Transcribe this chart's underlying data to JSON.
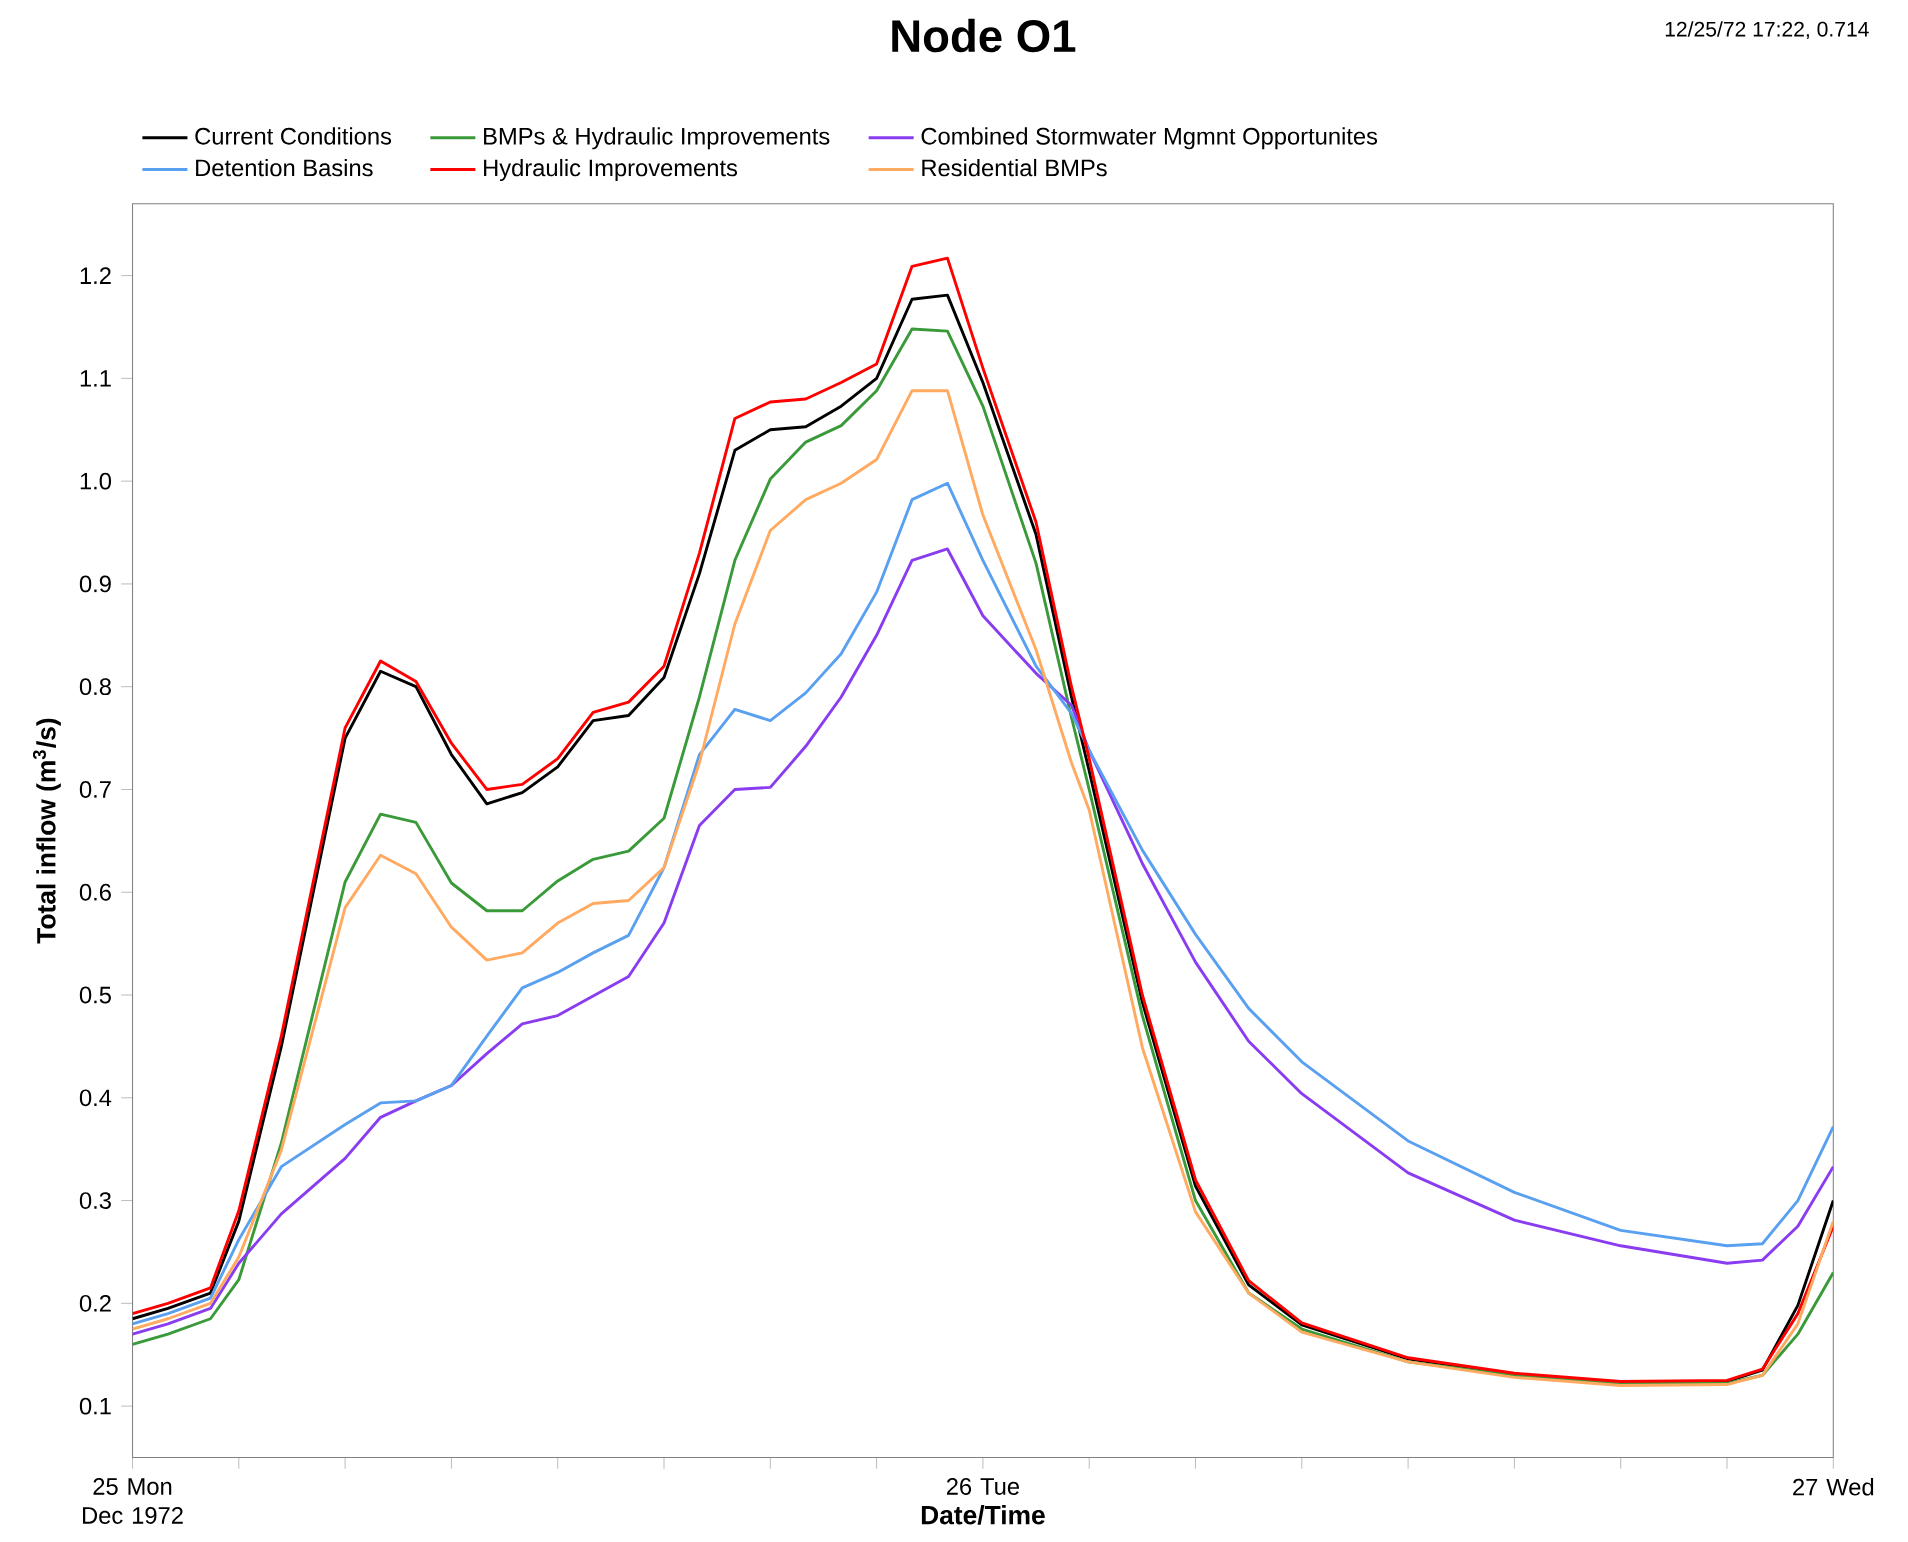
{
  "chart_data": {
    "type": "line",
    "title": "Node O1",
    "xlabel": "Date/Time",
    "ylabel": "Total inflow (m$^{3}$/s)",
    "annotations": [
      "12/25/72 17:22, 0.714"
    ],
    "x": [
      "1972-12-25T00:00",
      "1972-12-25T01:00",
      "1972-12-25T02:12",
      "1972-12-25T03:00",
      "1972-12-25T04:12",
      "1972-12-25T06:00",
      "1972-12-25T07:00",
      "1972-12-25T08:00",
      "1972-12-25T09:00",
      "1972-12-25T10:00",
      "1972-12-25T11:00",
      "1972-12-25T12:00",
      "1972-12-25T13:00",
      "1972-12-25T14:00",
      "1972-12-25T15:00",
      "1972-12-25T16:00",
      "1972-12-25T17:00",
      "1972-12-25T18:00",
      "1972-12-25T19:00",
      "1972-12-25T20:00",
      "1972-12-25T21:00",
      "1972-12-25T22:00",
      "1972-12-25T23:00",
      "1972-12-26T00:00",
      "1972-12-26T01:30",
      "1972-12-26T02:30",
      "1972-12-26T03:00",
      "1972-12-26T04:30",
      "1972-12-26T06:00",
      "1972-12-26T07:30",
      "1972-12-26T09:00",
      "1972-12-26T12:00",
      "1972-12-26T15:00",
      "1972-12-26T18:00",
      "1972-12-26T21:00",
      "1972-12-26T22:00",
      "1972-12-26T23:00",
      "1972-12-27T00:00"
    ],
    "series": [
      {
        "name": "Current Conditions",
        "color": "#000000",
        "values": [
          0.185,
          0.195,
          0.21,
          0.28,
          0.45,
          0.75,
          0.815,
          0.8,
          0.734,
          0.686,
          0.697,
          0.722,
          0.767,
          0.772,
          0.809,
          0.91,
          1.03,
          1.05,
          1.053,
          1.073,
          1.1,
          1.177,
          1.181,
          1.096,
          0.948,
          0.79,
          0.718,
          0.493,
          0.314,
          0.218,
          0.179,
          0.146,
          0.131,
          0.123,
          0.124,
          0.135,
          0.198,
          0.3
        ]
      },
      {
        "name": "BMPs & Hydraulic Improvements",
        "color": "#3a9a3a",
        "values": [
          0.16,
          0.17,
          0.185,
          0.223,
          0.356,
          0.61,
          0.676,
          0.668,
          0.609,
          0.582,
          0.582,
          0.611,
          0.632,
          0.64,
          0.672,
          0.79,
          0.923,
          1.002,
          1.038,
          1.054,
          1.088,
          1.148,
          1.146,
          1.073,
          0.92,
          0.77,
          0.7,
          0.48,
          0.3,
          0.21,
          0.175,
          0.143,
          0.13,
          0.122,
          0.122,
          0.13,
          0.17,
          0.23
        ]
      },
      {
        "name": "Combined Stormwater Mgmnt Opportunites",
        "color": "#8a3cf0",
        "values": [
          0.17,
          0.18,
          0.195,
          0.239,
          0.287,
          0.341,
          0.381,
          0.397,
          0.412,
          0.443,
          0.472,
          0.48,
          0.499,
          0.518,
          0.57,
          0.665,
          0.7,
          0.702,
          0.742,
          0.79,
          0.85,
          0.923,
          0.934,
          0.869,
          0.813,
          0.782,
          0.738,
          0.628,
          0.532,
          0.455,
          0.404,
          0.327,
          0.281,
          0.256,
          0.239,
          0.242,
          0.275,
          0.333
        ]
      },
      {
        "name": "Detention Basins",
        "color": "#5aa0f0",
        "values": [
          0.18,
          0.19,
          0.205,
          0.262,
          0.333,
          0.374,
          0.395,
          0.397,
          0.412,
          0.46,
          0.507,
          0.522,
          0.541,
          0.558,
          0.624,
          0.734,
          0.778,
          0.767,
          0.794,
          0.832,
          0.892,
          0.982,
          0.998,
          0.923,
          0.82,
          0.774,
          0.738,
          0.641,
          0.559,
          0.487,
          0.435,
          0.358,
          0.308,
          0.271,
          0.256,
          0.258,
          0.3,
          0.372
        ]
      },
      {
        "name": "Hydraulic Improvements",
        "color": "#ff0000",
        "values": [
          0.19,
          0.2,
          0.215,
          0.29,
          0.46,
          0.76,
          0.825,
          0.805,
          0.745,
          0.7,
          0.705,
          0.73,
          0.775,
          0.785,
          0.82,
          0.93,
          1.061,
          1.077,
          1.08,
          1.096,
          1.114,
          1.209,
          1.217,
          1.11,
          0.96,
          0.8,
          0.73,
          0.5,
          0.32,
          0.222,
          0.181,
          0.147,
          0.132,
          0.124,
          0.125,
          0.136,
          0.19,
          0.275
        ]
      },
      {
        "name": "Residential BMPs",
        "color": "#ffaa60",
        "values": [
          0.175,
          0.185,
          0.2,
          0.245,
          0.349,
          0.585,
          0.636,
          0.618,
          0.566,
          0.534,
          0.541,
          0.57,
          0.589,
          0.592,
          0.624,
          0.726,
          0.861,
          0.952,
          0.982,
          0.998,
          1.021,
          1.088,
          1.088,
          0.967,
          0.836,
          0.726,
          0.68,
          0.449,
          0.289,
          0.21,
          0.172,
          0.143,
          0.128,
          0.12,
          0.121,
          0.13,
          0.18,
          0.28
        ]
      }
    ],
    "xlim": [
      "1972-12-25T00:00",
      "1972-12-27T00:00"
    ],
    "ylim": [
      0.05,
      1.27
    ],
    "xticks": [
      {
        "value": "1972-12-25T00:00",
        "label": "25 Mon Dec 1972"
      },
      {
        "value": "1972-12-25T03:00",
        "label": null
      },
      {
        "value": "1972-12-25T06:00",
        "label": null
      },
      {
        "value": "1972-12-25T09:00",
        "label": null
      },
      {
        "value": "1972-12-25T12:00",
        "label": null
      },
      {
        "value": "1972-12-25T15:00",
        "label": null
      },
      {
        "value": "1972-12-25T18:00",
        "label": null
      },
      {
        "value": "1972-12-25T21:00",
        "label": null
      },
      {
        "value": "1972-12-26T00:00",
        "label": "26 Tue"
      },
      {
        "value": "1972-12-26T03:00",
        "label": null
      },
      {
        "value": "1972-12-26T06:00",
        "label": null
      },
      {
        "value": "1972-12-26T09:00",
        "label": null
      },
      {
        "value": "1972-12-26T12:00",
        "label": null
      },
      {
        "value": "1972-12-26T15:00",
        "label": null
      },
      {
        "value": "1972-12-26T18:00",
        "label": null
      },
      {
        "value": "1972-12-26T21:00",
        "label": null
      },
      {
        "value": "1972-12-27T00:00",
        "label": "27 Wed"
      }
    ],
    "yticks": [
      0.1,
      0.2,
      0.3,
      0.4,
      0.5,
      0.6,
      0.7,
      0.8,
      0.9,
      {
        "value": 1.0,
        "label": "1.0"
      },
      1.1,
      1.2
    ],
    "grid": false,
    "legend": "top",
    "marker": "none",
    "line_style": "solid"
  }
}
